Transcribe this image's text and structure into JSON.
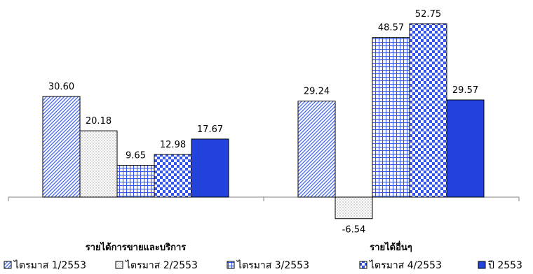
{
  "chart_data": {
    "type": "bar",
    "categories": [
      "รายได้การขายและบริการ",
      "รายได้อื่นๆ"
    ],
    "series": [
      {
        "name": "ไตรมาส 1/2553",
        "values": [
          30.6,
          29.24
        ],
        "labels": [
          "30.60",
          "29.24"
        ],
        "color": "#4466ee",
        "pattern": "diagonal-hatch"
      },
      {
        "name": "ไตรมาส 2/2553",
        "values": [
          20.18,
          -6.54
        ],
        "labels": [
          "20.18",
          "-6.54"
        ],
        "color": "#999999",
        "pattern": "dots"
      },
      {
        "name": "ไตรมาส 3/2553",
        "values": [
          9.65,
          48.57
        ],
        "labels": [
          "9.65",
          "48.57"
        ],
        "color": "#3355ee",
        "pattern": "grid"
      },
      {
        "name": "ไตรมาส 4/2553",
        "values": [
          12.98,
          52.75
        ],
        "labels": [
          "12.98",
          "52.75"
        ],
        "color": "#3355ee",
        "pattern": "checker"
      },
      {
        "name": "ปี 2553",
        "values": [
          17.67,
          29.57
        ],
        "labels": [
          "17.67",
          "29.57"
        ],
        "color": "#2244dd",
        "pattern": "solid"
      }
    ],
    "title": "",
    "xlabel": "",
    "ylabel": "",
    "ylim": [
      -10,
      55
    ],
    "grid": false,
    "legend": "bottom"
  }
}
